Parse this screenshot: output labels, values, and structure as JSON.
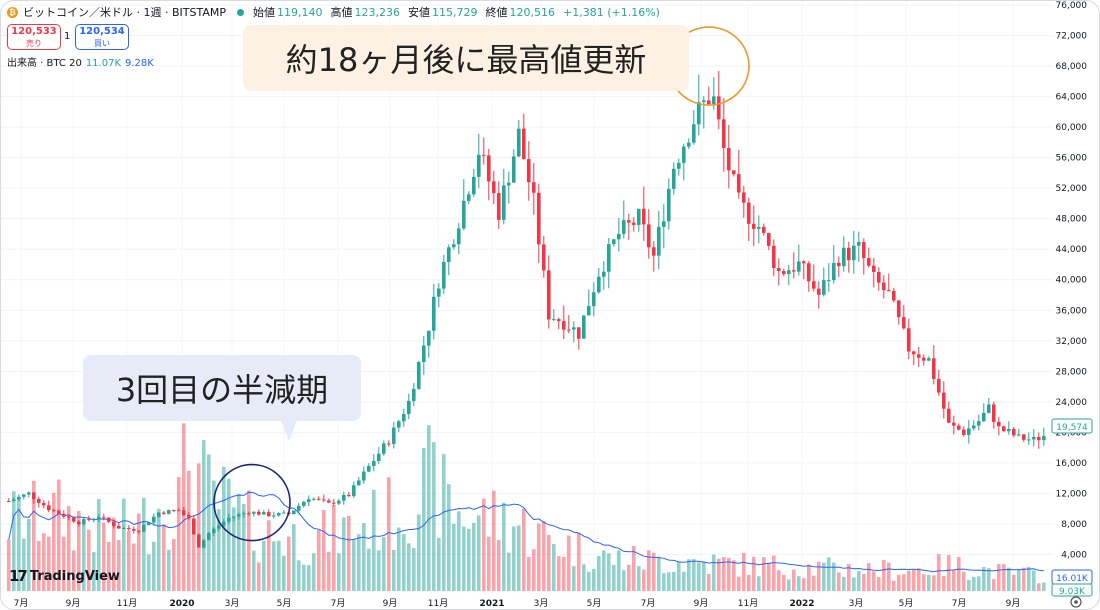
{
  "header": {
    "coin_icon": "bitcoin-icon",
    "title": "ビットコイン／米ドル · 1週 · BITSTAMP",
    "ohlc": [
      {
        "label": "始値",
        "value": "119,140"
      },
      {
        "label": "高値",
        "value": "123,236"
      },
      {
        "label": "安値",
        "value": "115,729"
      },
      {
        "label": "終値",
        "value": "120,516"
      }
    ],
    "change": "+1,381 (+1.16%)"
  },
  "trade": {
    "sell_price": "120,533",
    "sell_label": "売り",
    "quantity": "1",
    "buy_price": "120,534",
    "buy_label": "買い"
  },
  "volume_legend": {
    "label": "出来高 · BTC 20",
    "volume": "11.07K",
    "ma": "9.28K"
  },
  "annotations": {
    "peak": "約18ヶ月後に最高値更新",
    "halving": "3回目の半減期"
  },
  "logo": {
    "text": "TradingView",
    "icon": "tradingview-logo-icon"
  },
  "settings_icon": "settings-icon",
  "colors": {
    "up": "#26a69a",
    "down": "#f23645",
    "ma": "#2962ff",
    "peak_circle": "#f0962b",
    "halving_circle": "#1a237e"
  },
  "chart_data": {
    "type": "candlestick",
    "timeframe": "1週",
    "x_range": [
      "2019-06",
      "2022-10"
    ],
    "ylim": [
      0,
      76000
    ],
    "y_ticks": [
      "76,000",
      "72,000",
      "68,000",
      "64,000",
      "60,000",
      "56,000",
      "52,000",
      "48,000",
      "44,000",
      "40,000",
      "36,000",
      "32,000",
      "28,000",
      "24,000",
      "20,000",
      "16,000",
      "12,000",
      "8,000",
      "4,000"
    ],
    "x_ticks": [
      "7月",
      "9月",
      "11月",
      "2020",
      "3月",
      "5月",
      "7月",
      "9月",
      "11月",
      "2021",
      "3月",
      "5月",
      "7月",
      "9月",
      "11月",
      "2022",
      "3月",
      "5月",
      "7月",
      "9月"
    ],
    "last_price": "19,574",
    "volume_last": "16.01K",
    "volume_ma_last": "9.03K",
    "price_anchors": [
      [
        0,
        11000
      ],
      [
        4,
        12000
      ],
      [
        8,
        10000
      ],
      [
        14,
        8200
      ],
      [
        18,
        9000
      ],
      [
        22,
        7500
      ],
      [
        26,
        7200
      ],
      [
        30,
        9500
      ],
      [
        34,
        9800
      ],
      [
        36,
        8600
      ],
      [
        38,
        5000
      ],
      [
        40,
        6800
      ],
      [
        44,
        8800
      ],
      [
        48,
        9600
      ],
      [
        52,
        9200
      ],
      [
        56,
        9300
      ],
      [
        60,
        11500
      ],
      [
        64,
        10600
      ],
      [
        68,
        11800
      ],
      [
        72,
        15500
      ],
      [
        76,
        19000
      ],
      [
        80,
        24000
      ],
      [
        84,
        34000
      ],
      [
        86,
        40000
      ],
      [
        90,
        48000
      ],
      [
        94,
        57000
      ],
      [
        98,
        49000
      ],
      [
        102,
        59000
      ],
      [
        105,
        50000
      ],
      [
        108,
        35500
      ],
      [
        111,
        34500
      ],
      [
        114,
        33000
      ],
      [
        118,
        41000
      ],
      [
        122,
        46000
      ],
      [
        126,
        48000
      ],
      [
        129,
        43000
      ],
      [
        133,
        55000
      ],
      [
        137,
        61000
      ],
      [
        140,
        64000
      ],
      [
        141,
        63500
      ],
      [
        143,
        57000
      ],
      [
        146,
        50000
      ],
      [
        150,
        47000
      ],
      [
        154,
        41000
      ],
      [
        158,
        42000
      ],
      [
        162,
        38000
      ],
      [
        166,
        43000
      ],
      [
        170,
        44000
      ],
      [
        173,
        40000
      ],
      [
        176,
        38000
      ],
      [
        180,
        31000
      ],
      [
        184,
        29500
      ],
      [
        188,
        21000
      ],
      [
        191,
        20000
      ],
      [
        194,
        21500
      ],
      [
        196,
        23200
      ],
      [
        198,
        20500
      ],
      [
        200,
        20000
      ],
      [
        202,
        19300
      ],
      [
        205,
        19000
      ],
      [
        207,
        19574
      ]
    ],
    "volume_anchors": [
      [
        0,
        5.5
      ],
      [
        10,
        6.0
      ],
      [
        20,
        4.5
      ],
      [
        26,
        5.0
      ],
      [
        30,
        6.5
      ],
      [
        34,
        7.0
      ],
      [
        36,
        11.0
      ],
      [
        38,
        9.0
      ],
      [
        40,
        7.5
      ],
      [
        44,
        6.5
      ],
      [
        50,
        4.5
      ],
      [
        60,
        4.0
      ],
      [
        70,
        5.0
      ],
      [
        80,
        6.5
      ],
      [
        84,
        8.5
      ],
      [
        90,
        6.0
      ],
      [
        100,
        5.5
      ],
      [
        108,
        4.0
      ],
      [
        120,
        2.5
      ],
      [
        140,
        2.2
      ],
      [
        160,
        1.8
      ],
      [
        180,
        1.6
      ],
      [
        188,
        2.0
      ],
      [
        200,
        1.4
      ],
      [
        207,
        1.2
      ]
    ],
    "halving_week": 48,
    "peak_week": 140
  }
}
